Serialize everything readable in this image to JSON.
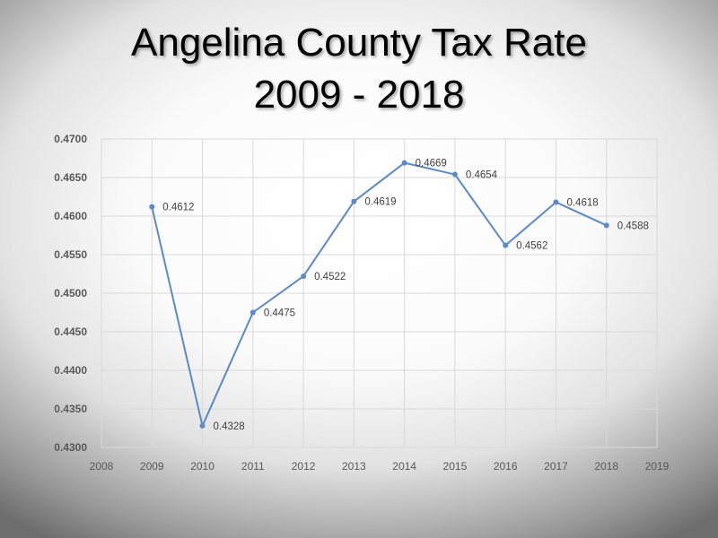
{
  "title": "Angelina County Tax Rate",
  "subtitle": "2009 - 2018",
  "chart_data": {
    "type": "scatter",
    "mode": "lines+markers",
    "title": "Angelina County Tax Rate 2009 - 2018",
    "xlabel": "",
    "ylabel": "",
    "x": [
      2009,
      2010,
      2011,
      2012,
      2013,
      2014,
      2015,
      2016,
      2017,
      2018
    ],
    "y": [
      0.4612,
      0.4328,
      0.4475,
      0.4522,
      0.4619,
      0.4669,
      0.4654,
      0.4562,
      0.4618,
      0.4588
    ],
    "data_labels": [
      "0.4612",
      "0.4328",
      "0.4475",
      "0.4522",
      "0.4619",
      "0.4669",
      "0.4654",
      "0.4562",
      "0.4618",
      "0.4588"
    ],
    "xlim": [
      2008,
      2019
    ],
    "ylim": [
      0.43,
      0.47
    ],
    "x_ticks": [
      "2008",
      "2009",
      "2010",
      "2011",
      "2012",
      "2013",
      "2014",
      "2015",
      "2016",
      "2017",
      "2018",
      "2019"
    ],
    "y_ticks": [
      "0.4300",
      "0.4350",
      "0.4400",
      "0.4450",
      "0.4500",
      "0.4550",
      "0.4600",
      "0.4650",
      "0.4700"
    ],
    "grid": true,
    "legend": "none",
    "line_color": "#5b8ac6",
    "grid_color": "#d9d9d9"
  }
}
